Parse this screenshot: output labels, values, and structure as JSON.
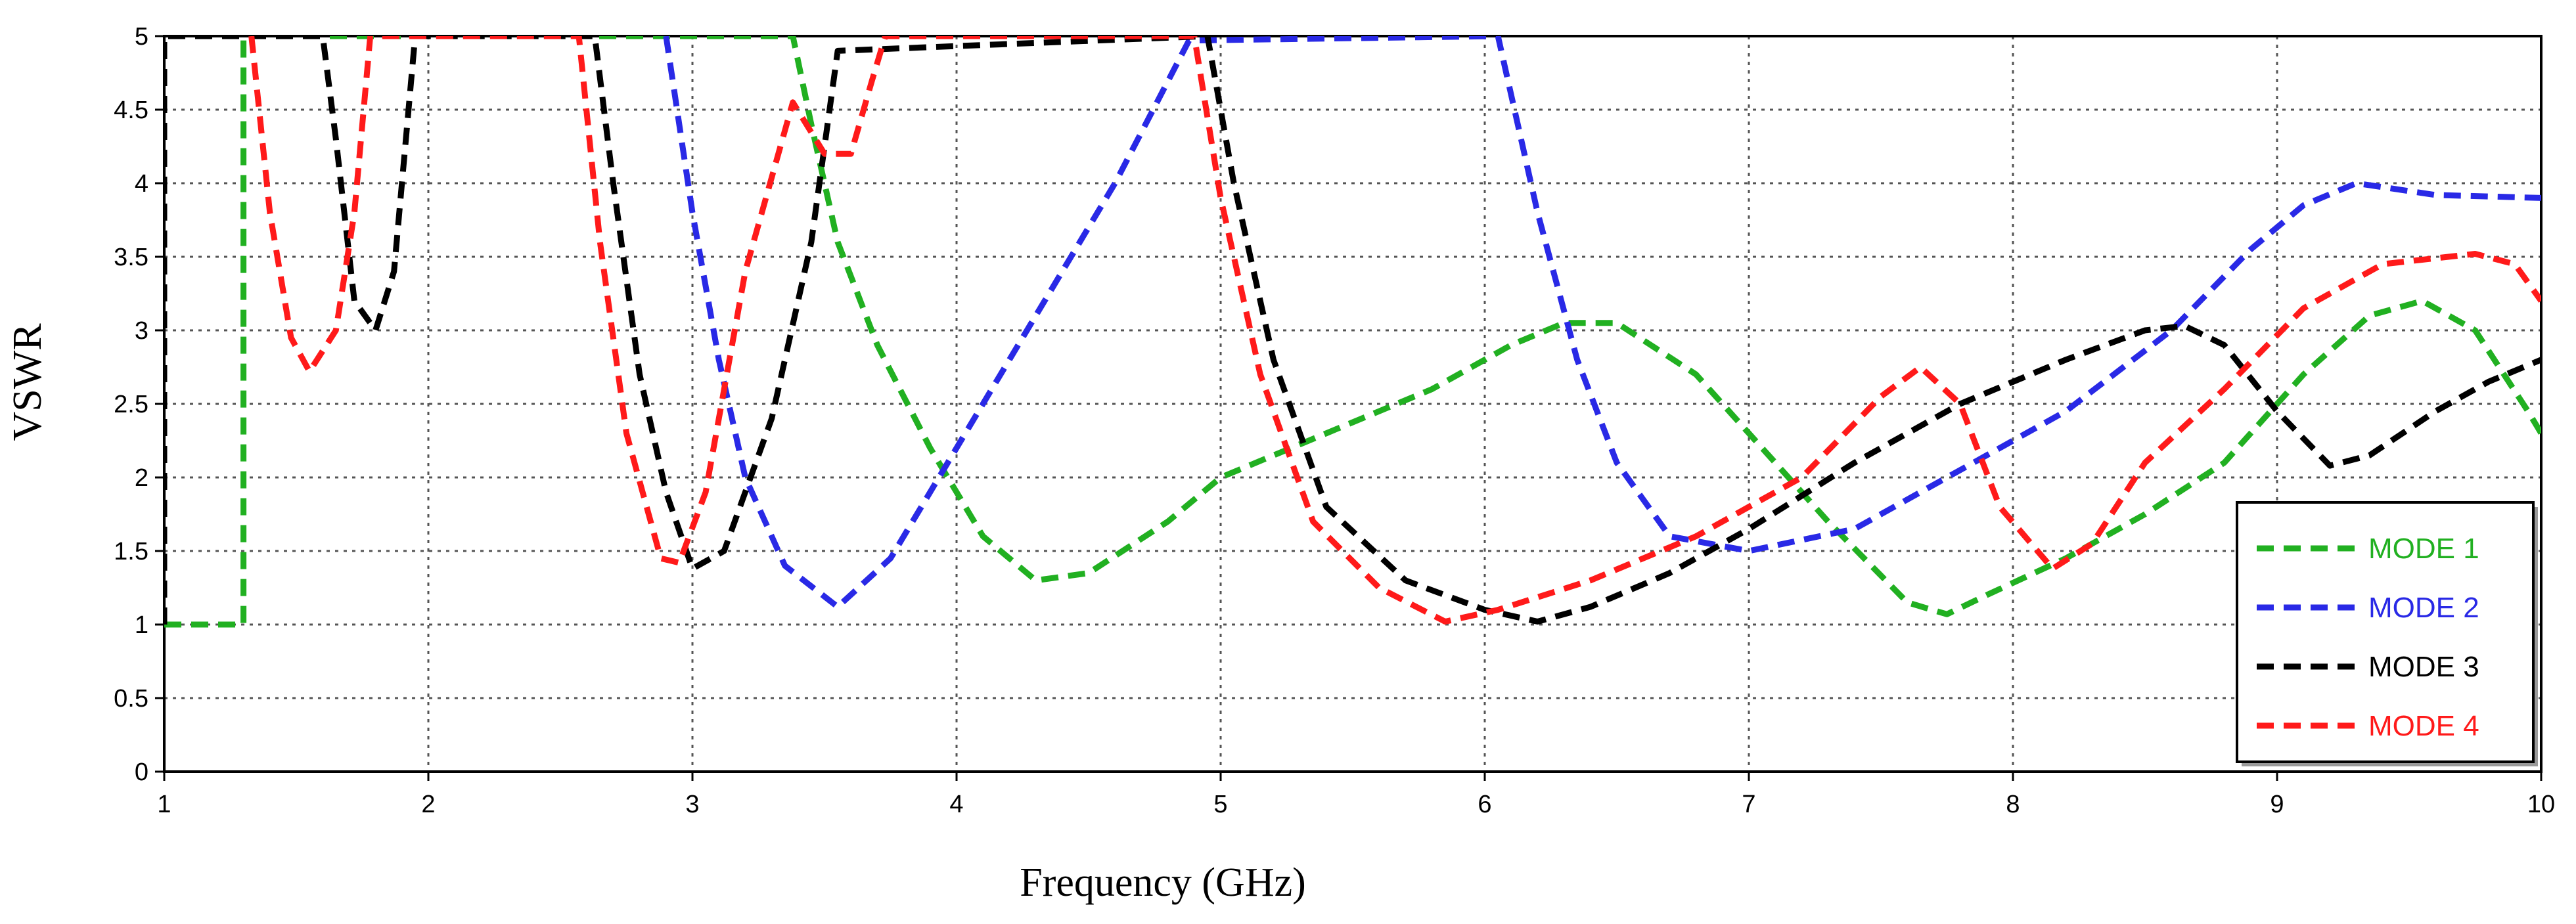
{
  "chart_data": {
    "type": "line",
    "title": "",
    "xlabel": "Frequency (GHz)",
    "ylabel": "VSWR",
    "xlim": [
      1,
      10
    ],
    "ylim": [
      0,
      5
    ],
    "x_ticks": [
      1,
      2,
      3,
      4,
      5,
      6,
      7,
      8,
      9,
      10
    ],
    "y_ticks": [
      0,
      0.5,
      1,
      1.5,
      2,
      2.5,
      3,
      3.5,
      4,
      4.5,
      5
    ],
    "x_tick_labels": [
      "1",
      "2",
      "3",
      "4",
      "5",
      "6",
      "7",
      "8",
      "9",
      "10"
    ],
    "y_tick_labels": [
      "0",
      "0.5",
      "1",
      "1.5",
      "2",
      "2.5",
      "3",
      "3.5",
      "4",
      "4.5",
      "5"
    ],
    "grid": true,
    "legend_position": "bottom-right",
    "series": [
      {
        "name": "MODE 1",
        "color": "#21b021",
        "points": [
          [
            1.0,
            1.0
          ],
          [
            1.3,
            1.0
          ],
          [
            1.3,
            5.0
          ],
          [
            1.31,
            5.0
          ],
          [
            3.38,
            5.0
          ],
          [
            3.45,
            4.4
          ],
          [
            3.55,
            3.6
          ],
          [
            3.7,
            2.9
          ],
          [
            3.9,
            2.2
          ],
          [
            4.1,
            1.6
          ],
          [
            4.3,
            1.3
          ],
          [
            4.5,
            1.35
          ],
          [
            4.8,
            1.7
          ],
          [
            5.0,
            2.0
          ],
          [
            5.4,
            2.3
          ],
          [
            5.8,
            2.6
          ],
          [
            6.1,
            2.9
          ],
          [
            6.3,
            3.05
          ],
          [
            6.5,
            3.05
          ],
          [
            6.8,
            2.7
          ],
          [
            7.0,
            2.3
          ],
          [
            7.3,
            1.7
          ],
          [
            7.6,
            1.15
          ],
          [
            7.75,
            1.07
          ],
          [
            7.9,
            1.2
          ],
          [
            8.2,
            1.45
          ],
          [
            8.5,
            1.75
          ],
          [
            8.8,
            2.1
          ],
          [
            9.1,
            2.7
          ],
          [
            9.35,
            3.1
          ],
          [
            9.55,
            3.2
          ],
          [
            9.75,
            3.0
          ],
          [
            9.95,
            2.45
          ],
          [
            10.0,
            2.3
          ]
        ]
      },
      {
        "name": "MODE 2",
        "color": "#2929e6",
        "points": [
          [
            2.9,
            5.0
          ],
          [
            3.0,
            3.8
          ],
          [
            3.1,
            2.8
          ],
          [
            3.2,
            2.0
          ],
          [
            3.35,
            1.4
          ],
          [
            3.55,
            1.12
          ],
          [
            3.75,
            1.45
          ],
          [
            4.0,
            2.2
          ],
          [
            4.3,
            3.1
          ],
          [
            4.6,
            4.0
          ],
          [
            4.88,
            4.97
          ],
          [
            6.05,
            5.0
          ],
          [
            6.2,
            3.8
          ],
          [
            6.35,
            2.8
          ],
          [
            6.5,
            2.1
          ],
          [
            6.7,
            1.6
          ],
          [
            7.0,
            1.5
          ],
          [
            7.4,
            1.65
          ],
          [
            7.8,
            2.05
          ],
          [
            8.2,
            2.45
          ],
          [
            8.6,
            3.0
          ],
          [
            8.9,
            3.55
          ],
          [
            9.1,
            3.85
          ],
          [
            9.3,
            4.0
          ],
          [
            9.6,
            3.92
          ],
          [
            10.0,
            3.9
          ]
        ]
      },
      {
        "name": "MODE 3",
        "color": "#000000",
        "points": [
          [
            1.0,
            1.0
          ],
          [
            1.0,
            5.0
          ],
          [
            1.6,
            5.0
          ],
          [
            1.65,
            4.3
          ],
          [
            1.72,
            3.2
          ],
          [
            1.8,
            3.0
          ],
          [
            1.87,
            3.4
          ],
          [
            1.95,
            5.0
          ],
          [
            2.63,
            5.0
          ],
          [
            2.7,
            4.0
          ],
          [
            2.8,
            2.7
          ],
          [
            2.9,
            1.9
          ],
          [
            3.0,
            1.38
          ],
          [
            3.12,
            1.5
          ],
          [
            3.3,
            2.4
          ],
          [
            3.45,
            3.6
          ],
          [
            3.55,
            4.9
          ],
          [
            4.95,
            5.0
          ],
          [
            5.05,
            4.0
          ],
          [
            5.2,
            2.8
          ],
          [
            5.4,
            1.8
          ],
          [
            5.7,
            1.3
          ],
          [
            6.0,
            1.1
          ],
          [
            6.2,
            1.02
          ],
          [
            6.4,
            1.12
          ],
          [
            6.7,
            1.35
          ],
          [
            7.0,
            1.65
          ],
          [
            7.4,
            2.1
          ],
          [
            7.8,
            2.5
          ],
          [
            8.2,
            2.8
          ],
          [
            8.5,
            3.0
          ],
          [
            8.65,
            3.03
          ],
          [
            8.8,
            2.9
          ],
          [
            9.0,
            2.45
          ],
          [
            9.2,
            2.08
          ],
          [
            9.35,
            2.15
          ],
          [
            9.6,
            2.45
          ],
          [
            9.8,
            2.65
          ],
          [
            10.0,
            2.8
          ]
        ]
      },
      {
        "name": "MODE 4",
        "color": "#ff1a1a",
        "points": [
          [
            1.33,
            5.0
          ],
          [
            1.4,
            3.8
          ],
          [
            1.48,
            2.95
          ],
          [
            1.55,
            2.72
          ],
          [
            1.65,
            3.0
          ],
          [
            1.72,
            3.8
          ],
          [
            1.78,
            5.0
          ],
          [
            2.57,
            5.0
          ],
          [
            2.65,
            3.6
          ],
          [
            2.75,
            2.3
          ],
          [
            2.88,
            1.45
          ],
          [
            2.95,
            1.42
          ],
          [
            3.05,
            1.9
          ],
          [
            3.2,
            3.4
          ],
          [
            3.38,
            4.55
          ],
          [
            3.5,
            4.2
          ],
          [
            3.6,
            4.2
          ],
          [
            3.68,
            4.7
          ],
          [
            3.73,
            5.0
          ],
          [
            4.9,
            5.0
          ],
          [
            5.0,
            3.9
          ],
          [
            5.15,
            2.7
          ],
          [
            5.35,
            1.7
          ],
          [
            5.6,
            1.25
          ],
          [
            5.85,
            1.02
          ],
          [
            6.05,
            1.1
          ],
          [
            6.4,
            1.3
          ],
          [
            6.8,
            1.6
          ],
          [
            7.2,
            2.0
          ],
          [
            7.5,
            2.55
          ],
          [
            7.65,
            2.75
          ],
          [
            7.8,
            2.5
          ],
          [
            7.95,
            1.8
          ],
          [
            8.15,
            1.38
          ],
          [
            8.3,
            1.55
          ],
          [
            8.5,
            2.1
          ],
          [
            8.8,
            2.6
          ],
          [
            9.1,
            3.15
          ],
          [
            9.4,
            3.45
          ],
          [
            9.75,
            3.52
          ],
          [
            9.9,
            3.45
          ],
          [
            10.0,
            3.2
          ]
        ]
      }
    ]
  }
}
